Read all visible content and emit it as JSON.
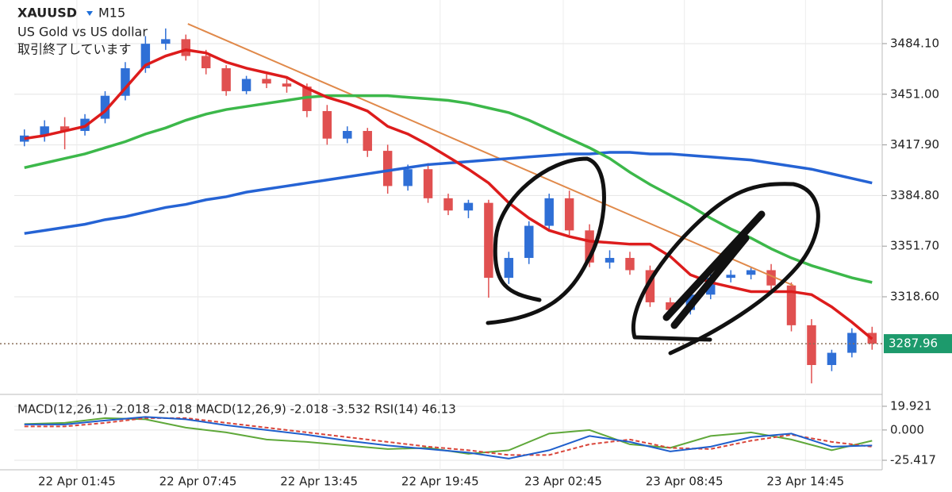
{
  "chart_data": [
    {
      "type": "candlestick",
      "title": "XAUUSD",
      "subtitle": "M15",
      "description": "US Gold vs US dollar",
      "status": "取引終了しています",
      "x": [
        0.5,
        1.5,
        2.5,
        3.5,
        4.5,
        5.5,
        6.5,
        7.5,
        8.5,
        9.5,
        10.5,
        11.5,
        12.5,
        13.5,
        14.5,
        15.5,
        16.5,
        17.5,
        18.5,
        19.5,
        20.5,
        21.5,
        22.5,
        23.5,
        24.5,
        25.5,
        26.5,
        27.5,
        28.5,
        29.5,
        30.5,
        31.5,
        32.5,
        33.5,
        34.5,
        35.5,
        36.5,
        37.5,
        38.5,
        39.5,
        40.5,
        41.5,
        42.5
      ],
      "open": [
        3420,
        3424,
        3430,
        3427,
        3435,
        3450,
        3468,
        3484,
        3487,
        3476,
        3468,
        3453,
        3461,
        3458,
        3456,
        3440,
        3422,
        3427,
        3414,
        3391,
        3402,
        3383,
        3375,
        3380,
        3331,
        3344,
        3365,
        3383,
        3362,
        3341,
        3344,
        3336,
        3315,
        3310,
        3320,
        3331,
        3333,
        3336,
        3326,
        3300,
        3274,
        3282,
        3295
      ],
      "high": [
        3428,
        3434,
        3436,
        3438,
        3453,
        3472,
        3489,
        3494,
        3490,
        3480,
        3470,
        3463,
        3464,
        3462,
        3458,
        3444,
        3430,
        3429,
        3418,
        3405,
        3406,
        3386,
        3382,
        3382,
        3348,
        3368,
        3386,
        3388,
        3366,
        3349,
        3348,
        3339,
        3318,
        3322,
        3334,
        3336,
        3338,
        3340,
        3328,
        3304,
        3284,
        3298,
        3299
      ],
      "low": [
        3417,
        3420,
        3415,
        3424,
        3432,
        3447,
        3465,
        3480,
        3473,
        3464,
        3450,
        3451,
        3455,
        3452,
        3436,
        3418,
        3419,
        3410,
        3386,
        3388,
        3380,
        3372,
        3370,
        3318,
        3327,
        3340,
        3362,
        3359,
        3338,
        3337,
        3333,
        3312,
        3305,
        3307,
        3317,
        3328,
        3330,
        3322,
        3296,
        3262,
        3270,
        3279,
        3284
      ],
      "close": [
        3424,
        3430,
        3427,
        3435,
        3450,
        3468,
        3484,
        3487,
        3476,
        3468,
        3453,
        3461,
        3458,
        3456,
        3440,
        3422,
        3427,
        3414,
        3391,
        3402,
        3383,
        3375,
        3380,
        3331,
        3344,
        3365,
        3383,
        3362,
        3341,
        3344,
        3336,
        3315,
        3310,
        3320,
        3331,
        3333,
        3336,
        3326,
        3300,
        3274,
        3282,
        3295,
        3287.96
      ],
      "up_color": "#2f6fd6",
      "down_color": "#e05050",
      "series": [
        {
          "color": "#2563d4",
          "values": [
            3360,
            3362,
            3364,
            3366,
            3369,
            3371,
            3374,
            3377,
            3379,
            3382,
            3384,
            3387,
            3389,
            3391,
            3393,
            3395,
            3397,
            3399,
            3401,
            3403,
            3405,
            3406,
            3407,
            3408,
            3409,
            3410,
            3411,
            3412,
            3412,
            3413,
            3413,
            3412,
            3412,
            3411,
            3410,
            3409,
            3408,
            3406,
            3404,
            3402,
            3399,
            3396,
            3393
          ]
        },
        {
          "color": "#3cb84a",
          "values": [
            3403,
            3406,
            3409,
            3412,
            3416,
            3420,
            3425,
            3429,
            3434,
            3438,
            3441,
            3443,
            3445,
            3447,
            3449,
            3450,
            3450,
            3450,
            3450,
            3449,
            3448,
            3447,
            3445,
            3442,
            3439,
            3434,
            3428,
            3422,
            3416,
            3409,
            3400,
            3392,
            3385,
            3378,
            3370,
            3363,
            3357,
            3350,
            3344,
            3339,
            3335,
            3331,
            3328
          ]
        },
        {
          "color": "#dd1c1c",
          "values": [
            3422,
            3424,
            3427,
            3430,
            3440,
            3455,
            3470,
            3476,
            3480,
            3478,
            3472,
            3468,
            3465,
            3462,
            3455,
            3449,
            3445,
            3440,
            3430,
            3425,
            3418,
            3410,
            3402,
            3393,
            3380,
            3370,
            3362,
            3358,
            3355,
            3354,
            3353,
            3353,
            3345,
            3333,
            3328,
            3325,
            3322,
            3322,
            3322,
            3320,
            3312,
            3302,
            3291
          ]
        }
      ],
      "trendline": {
        "x": [
          8.6,
          38.6
        ],
        "values": [
          3497,
          3326
        ],
        "color": "#e0894a"
      },
      "last_price": 3287.96,
      "xlim": [
        0,
        43
      ],
      "xticks": [
        {
          "value": 3.1,
          "label": "22 Apr 01:45"
        },
        {
          "value": 9.1,
          "label": "22 Apr 07:45"
        },
        {
          "value": 15.1,
          "label": "22 Apr 13:45"
        },
        {
          "value": 21.1,
          "label": "22 Apr 19:45"
        },
        {
          "value": 27.2,
          "label": "23 Apr 02:45"
        },
        {
          "value": 33.2,
          "label": "23 Apr 08:45"
        },
        {
          "value": 39.2,
          "label": "23 Apr 14:45"
        }
      ],
      "ylim": [
        3254.8,
        3512.6
      ],
      "yticks": [
        {
          "value": 3484.1,
          "label": "3484.10"
        },
        {
          "value": 3451,
          "label": "3451.00"
        },
        {
          "value": 3417.9,
          "label": "3417.90"
        },
        {
          "value": 3384.8,
          "label": "3384.80"
        },
        {
          "value": 3351.7,
          "label": "3351.70"
        },
        {
          "value": 3318.6,
          "label": "3318.60"
        }
      ],
      "grid": true
    },
    {
      "type": "line",
      "legend_text": "MACD(12,26,1) -2.018 -2.018 MACD(12,26,9) -2.018 -3.532 RSI(14) 46.13",
      "x": [
        0.5,
        2.5,
        4.5,
        6.5,
        8.5,
        10.5,
        12.5,
        14.5,
        16.5,
        18.5,
        20.5,
        22.5,
        24.5,
        26.5,
        28.5,
        30.5,
        32.5,
        34.5,
        36.5,
        38.5,
        40.5,
        42.5
      ],
      "series": [
        {
          "color": "#5fa83a",
          "dashed": false,
          "values": [
            5,
            6,
            10,
            9,
            2,
            -2,
            -8,
            -10,
            -13,
            -16,
            -15,
            -20,
            -17,
            -3,
            0,
            -12,
            -15,
            -5,
            -2,
            -8,
            -17,
            -9
          ]
        },
        {
          "color": "#d9453a",
          "dashed": true,
          "values": [
            3,
            3,
            6,
            10,
            10,
            6,
            2,
            -2,
            -6,
            -10,
            -14,
            -17,
            -21,
            -21,
            -12,
            -8,
            -15,
            -16,
            -9,
            -4,
            -10,
            -14
          ]
        },
        {
          "color": "#1f5fcc",
          "dashed": false,
          "values": [
            4.7,
            4.7,
            8,
            11,
            9,
            4,
            0,
            -4,
            -9,
            -13,
            -16,
            -19,
            -24,
            -17,
            -5,
            -10,
            -18,
            -14,
            -6,
            -3,
            -14,
            -13
          ]
        }
      ],
      "xlim": [
        0,
        43
      ],
      "ylim": [
        -33.4,
        25.9
      ],
      "yticks": [
        19.921,
        {
          "value": 0,
          "label": "0.000"
        },
        -25.417
      ],
      "grid": true
    }
  ]
}
